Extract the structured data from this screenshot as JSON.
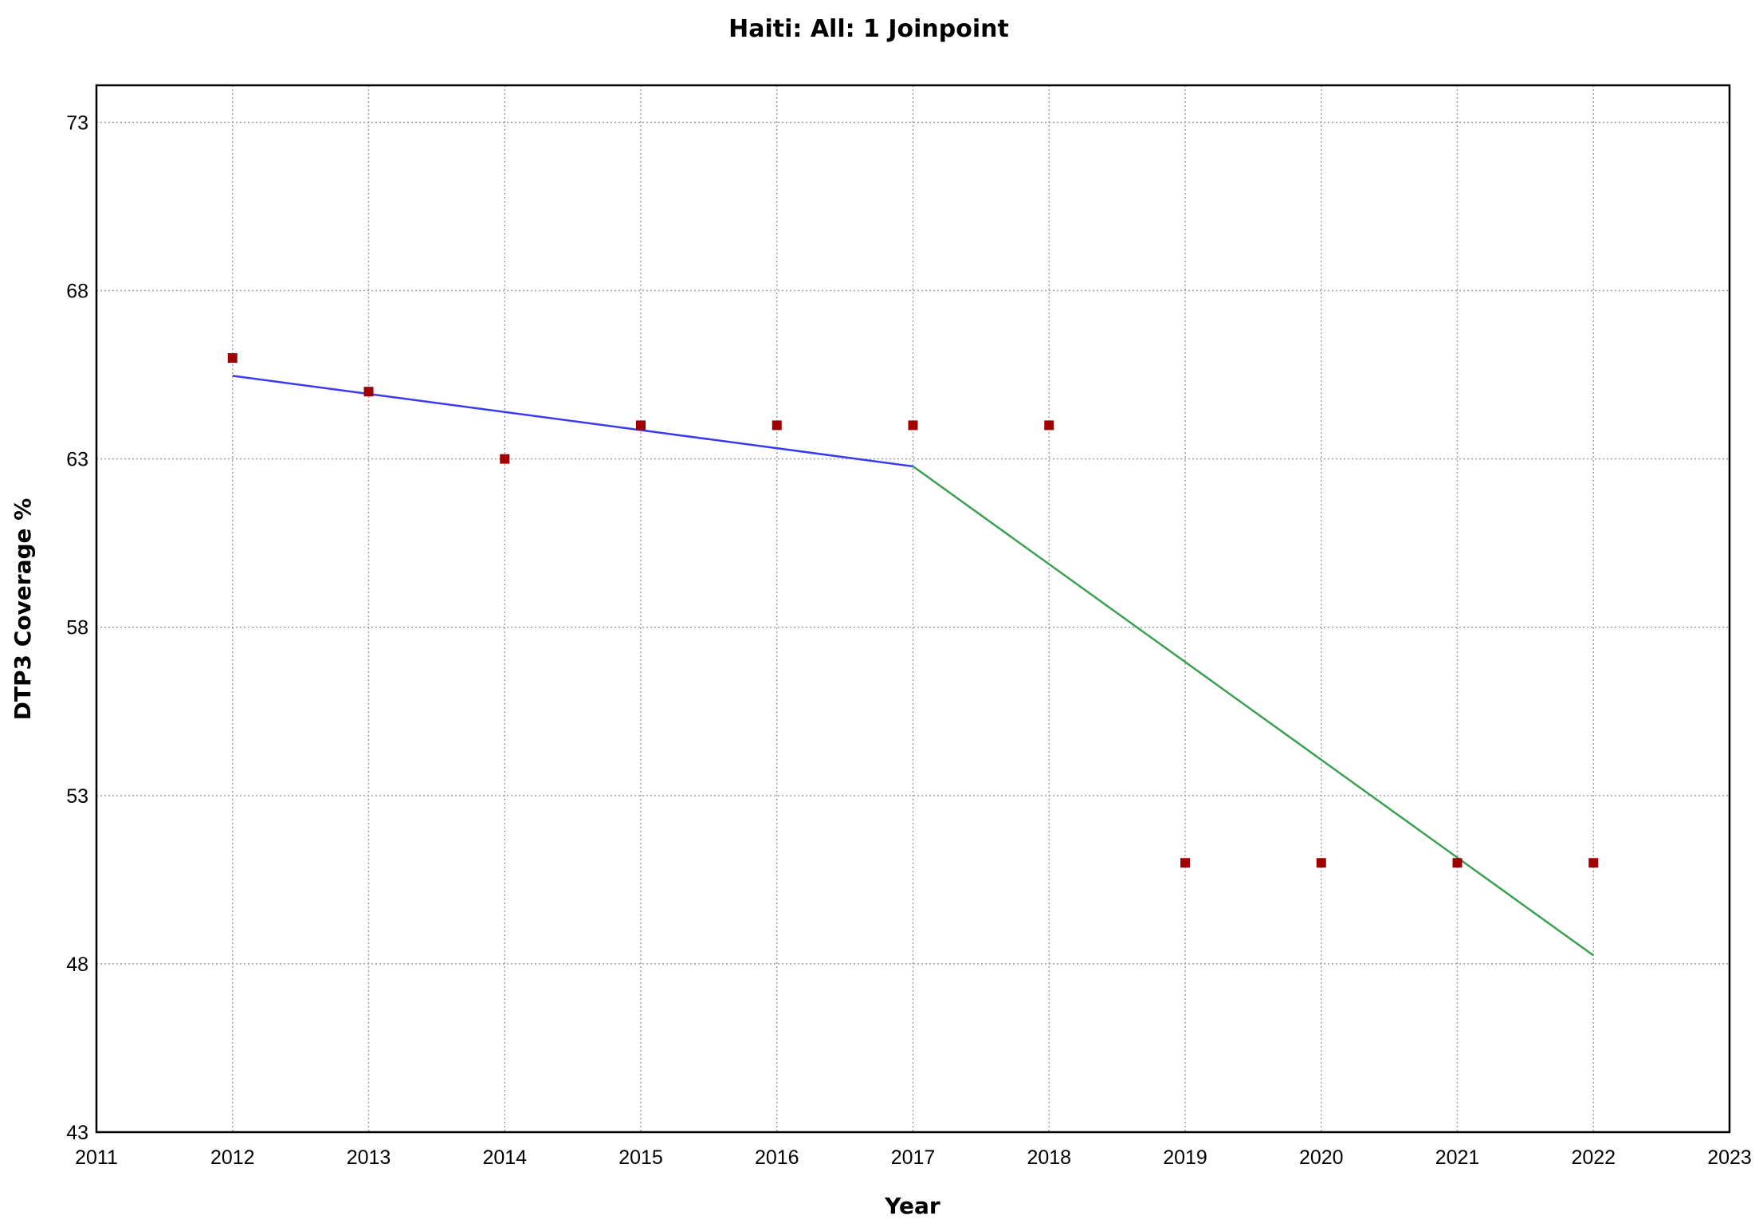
{
  "chart_data": {
    "type": "line",
    "title": "Haiti: All: 1 Joinpoint",
    "xlabel": "Year",
    "ylabel": "DTP3 Coverage %",
    "xlim": [
      2011,
      2023
    ],
    "ylim": [
      43,
      74.1
    ],
    "x_ticks": [
      2011,
      2012,
      2013,
      2014,
      2015,
      2016,
      2017,
      2018,
      2019,
      2020,
      2021,
      2022,
      2023
    ],
    "y_ticks": [
      43,
      48,
      53,
      58,
      63,
      68,
      73
    ],
    "grid": true,
    "observed": {
      "x": [
        2012,
        2013,
        2014,
        2015,
        2016,
        2017,
        2018,
        2019,
        2020,
        2021,
        2022
      ],
      "y": [
        66,
        65,
        63,
        64,
        64,
        64,
        64,
        51,
        51,
        51,
        51
      ]
    },
    "segments": [
      {
        "x": [
          2012,
          2017
        ],
        "y": [
          65.47,
          62.78
        ]
      },
      {
        "x": [
          2017,
          2022
        ],
        "y": [
          62.78,
          48.25
        ]
      }
    ]
  },
  "colors": {
    "marker": "#a00000",
    "segment_1": "#3a3af0",
    "segment_2": "#3aa050",
    "grid": "#a0a0a0",
    "frame": "#000000"
  }
}
